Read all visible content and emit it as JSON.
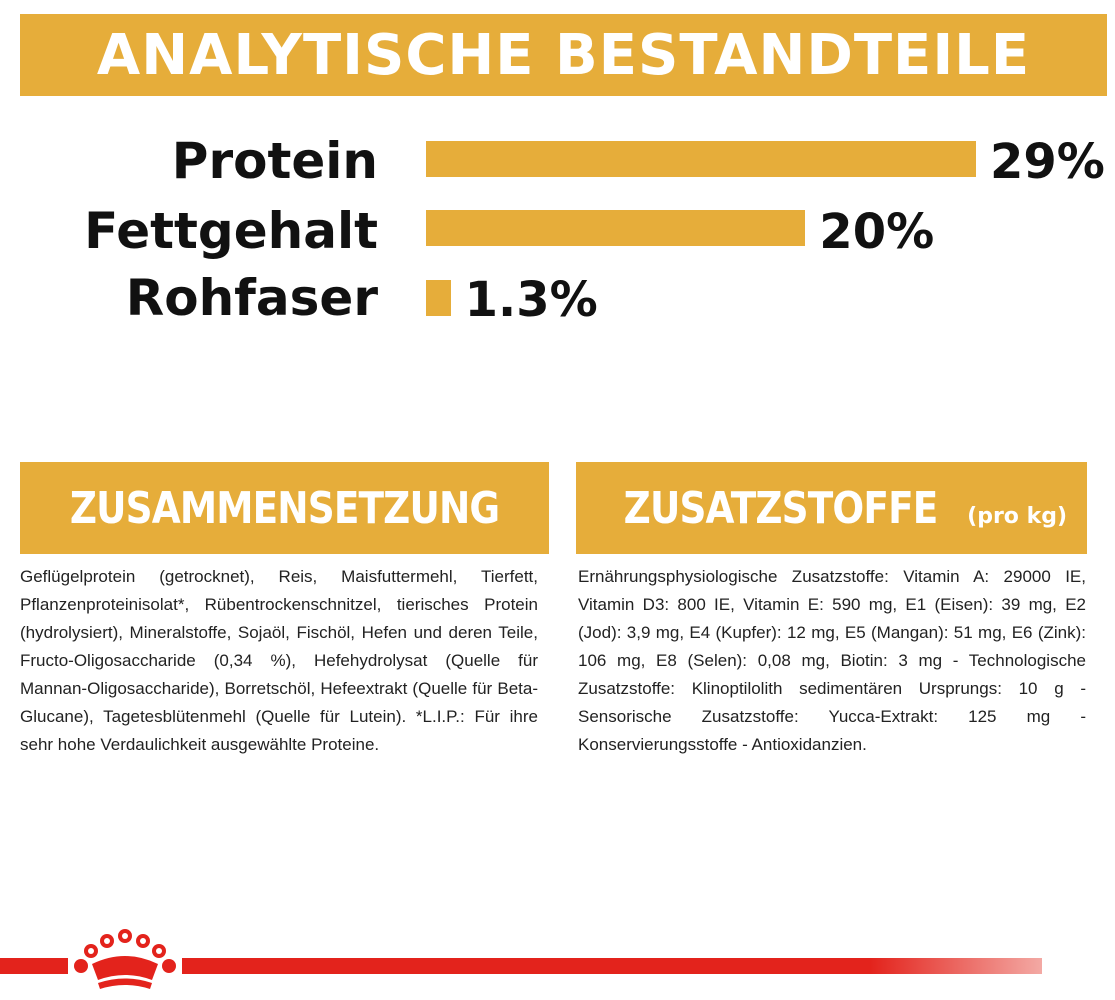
{
  "header": {
    "title": "ANALYTISCHE BESTANDTEILE"
  },
  "nutrients": [
    {
      "label": "Protein",
      "value_text": "29%",
      "percent": 29
    },
    {
      "label": "Fettgehalt",
      "value_text": "20%",
      "percent": 20
    },
    {
      "label": "Rohfaser",
      "value_text": "1.3%",
      "percent": 1.3
    }
  ],
  "composition": {
    "title": "ZUSAMMENSETZUNG",
    "text": "Geflügelprotein (getrocknet), Reis, Maisfuttermehl, Tierfett, Pflanzenproteinisolat*, Rübentrockenschnitzel, tierisches Protein (hydrolysiert), Mineralstoffe, Sojaöl, Fischöl, Hefen und deren Teile, Fructo-Oligosaccharide (0,34 %), Hefehydrolysat (Quelle für Mannan-Oligosaccharide), Borretschöl, Hefeextrakt (Quelle für Beta-Glucane), Tagetesblütenmehl (Quelle für Lutein). *L.I.P.: Für ihre sehr hohe Verdaulichkeit ausgewählte Proteine."
  },
  "additives": {
    "title": "ZUSATZSTOFFE",
    "title_suffix": "(pro kg)",
    "text": "Ernährungsphysiologische Zusatzstoffe: Vitamin A: 29000 IE, Vitamin D3: 800 IE, Vitamin E: 590 mg, E1 (Eisen): 39 mg, E2 (Jod): 3,9 mg, E4 (Kupfer): 12 mg, E5 (Mangan): 51 mg, E6 (Zink): 106 mg, E8 (Selen): 0,08 mg, Biotin: 3 mg - Technologische Zusatzstoffe: Klinoptilolith sedimentären Ursprungs: 10 g - Sensorische Zusatzstoffe: Yucca-Extrakt: 125 mg - Konservierungsstoffe - Antioxidanzien."
  },
  "footer": {
    "logo_icon": "crown-logo-icon"
  },
  "colors": {
    "accent": "#e6ad3a",
    "brand_red": "#e3231c",
    "text": "#111111"
  }
}
